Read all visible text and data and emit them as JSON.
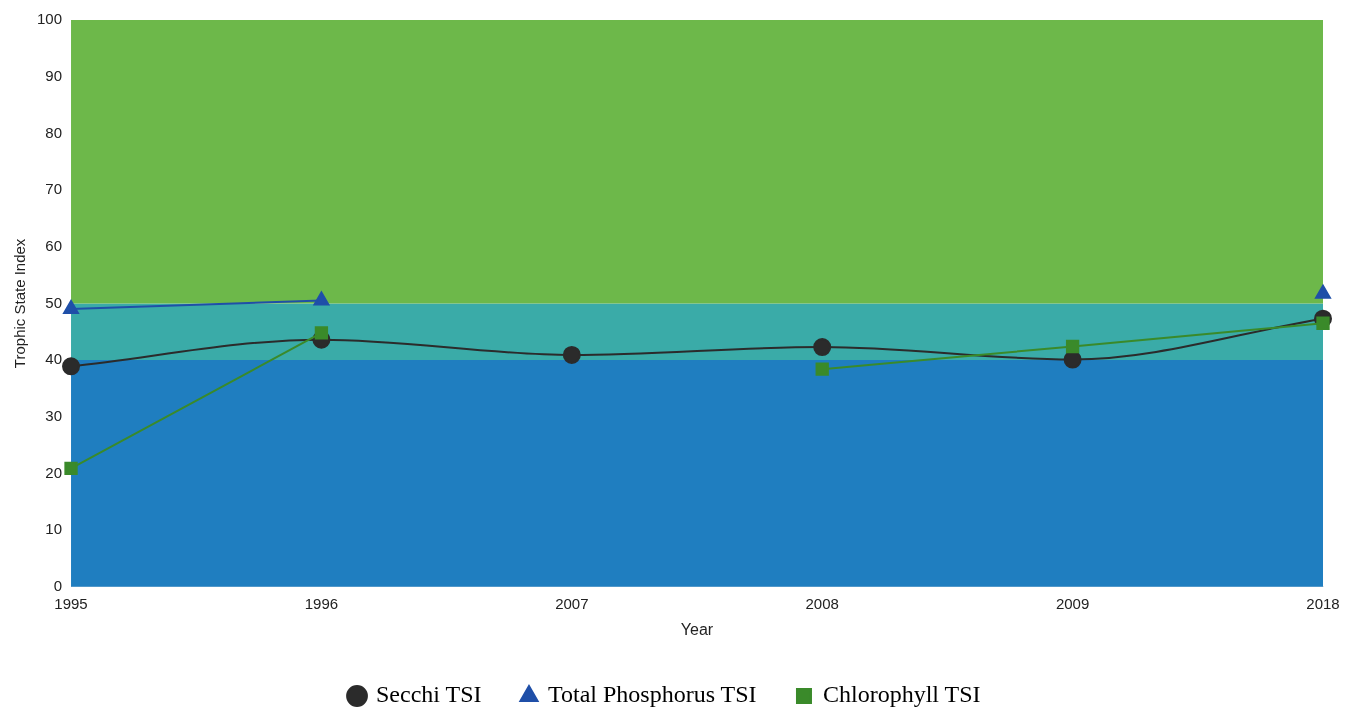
{
  "chart_data": {
    "type": "line",
    "xlabel": "Year",
    "ylabel": "Trophic State Index",
    "categories": [
      "1995",
      "1996",
      "2007",
      "2008",
      "2009",
      "2018"
    ],
    "series": [
      {
        "name": "Secchi TSI",
        "color": "#2b2b2b",
        "marker": "circle",
        "values": [
          38.9,
          43.6,
          40.9,
          42.3,
          40.1,
          47.3
        ]
      },
      {
        "name": "Total Phosphorus TSI",
        "color": "#1f4fa8",
        "marker": "triangle",
        "values": [
          49,
          50.5,
          null,
          null,
          null,
          51.7
        ]
      },
      {
        "name": "Chlorophyll TSI",
        "color": "#3a8a2a",
        "marker": "square",
        "values": [
          20.9,
          44.8,
          null,
          38.4,
          42.4,
          46.5
        ]
      }
    ],
    "bands": [
      {
        "axis": "y",
        "from": 0,
        "to": 40,
        "color": "#1f7ec0"
      },
      {
        "axis": "y",
        "from": 40,
        "to": 50,
        "color": "#3aaba8"
      },
      {
        "axis": "y",
        "from": 50,
        "to": 100,
        "color": "#6db84a"
      }
    ],
    "ylim": [
      0,
      100
    ],
    "yticks": [
      0,
      10,
      20,
      30,
      40,
      50,
      60,
      70,
      80,
      90,
      100
    ],
    "grid": false,
    "legend": "bottom"
  }
}
